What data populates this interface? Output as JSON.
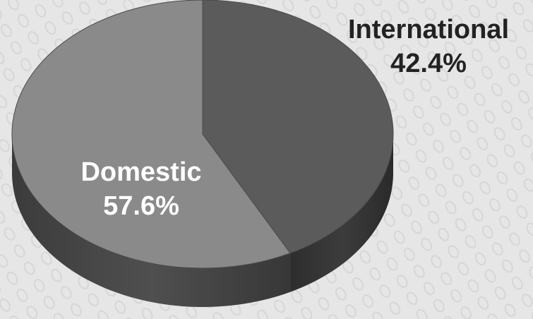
{
  "chart_data": {
    "type": "pie",
    "style": "3d",
    "legend": "none",
    "start_angle_deg": 0,
    "direction": "clockwise",
    "slices": [
      {
        "label": "International",
        "value": 42.4,
        "value_label": "42.4%",
        "color": "#5b5b5b",
        "side_color": "#3c3c3c"
      },
      {
        "label": "Domestic",
        "value": 57.6,
        "value_label": "57.6%",
        "color": "#8a8a8a",
        "side_color": "#4f4f4f"
      }
    ],
    "background_color": "#e6e6e6",
    "label_colors": {
      "International": "#222222",
      "Domestic": "#ffffff"
    }
  }
}
